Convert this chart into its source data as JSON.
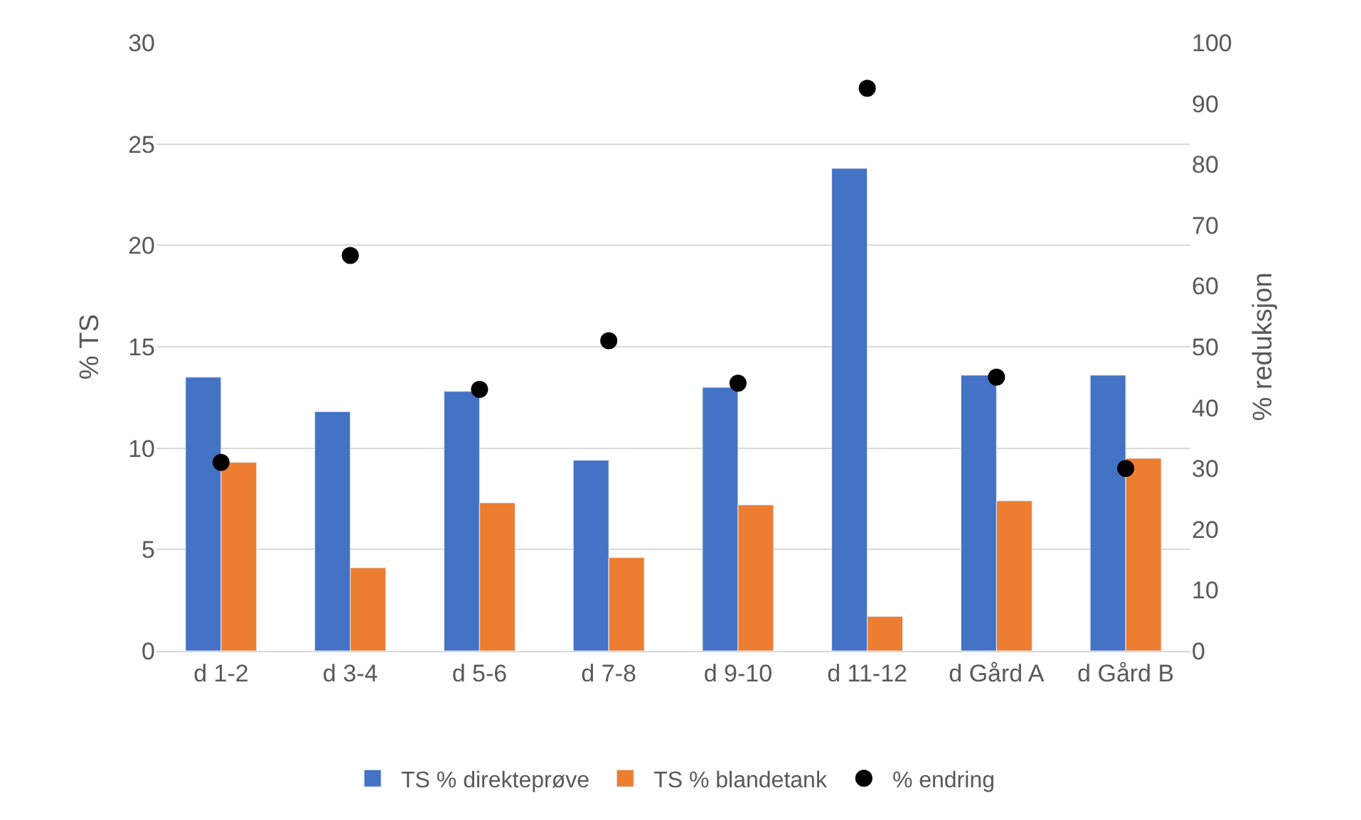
{
  "chart_data": {
    "type": "bar",
    "categories": [
      "d 1-2",
      "d 3-4",
      "d 5-6",
      "d 7-8",
      "d 9-10",
      "d 11-12",
      "d Gård A",
      "d Gård B"
    ],
    "series": [
      {
        "name": "TS % direkteprøve",
        "color": "#4472c4",
        "values": [
          13.5,
          11.8,
          12.8,
          9.4,
          13.0,
          23.8,
          13.6,
          13.6
        ]
      },
      {
        "name": "TS % blandetank",
        "color": "#ed7d31",
        "values": [
          9.3,
          4.1,
          7.3,
          4.6,
          7.2,
          1.7,
          7.4,
          9.5
        ]
      },
      {
        "name": "% endring",
        "color": "#000000",
        "type": "scatter",
        "axis": "y2",
        "marker": "circle",
        "values": [
          31,
          65,
          43,
          51,
          44,
          92.5,
          45,
          30
        ]
      }
    ],
    "ylabel": "% TS",
    "y2label": "% reduksjon",
    "ylim": [
      0,
      30
    ],
    "yticks": [
      0,
      5,
      10,
      15,
      20,
      25,
      30
    ],
    "y2lim": [
      0,
      100
    ],
    "y2ticks": [
      0,
      10,
      20,
      30,
      40,
      50,
      60,
      70,
      80,
      90,
      100
    ],
    "grid": "y",
    "legend": "bottom"
  }
}
